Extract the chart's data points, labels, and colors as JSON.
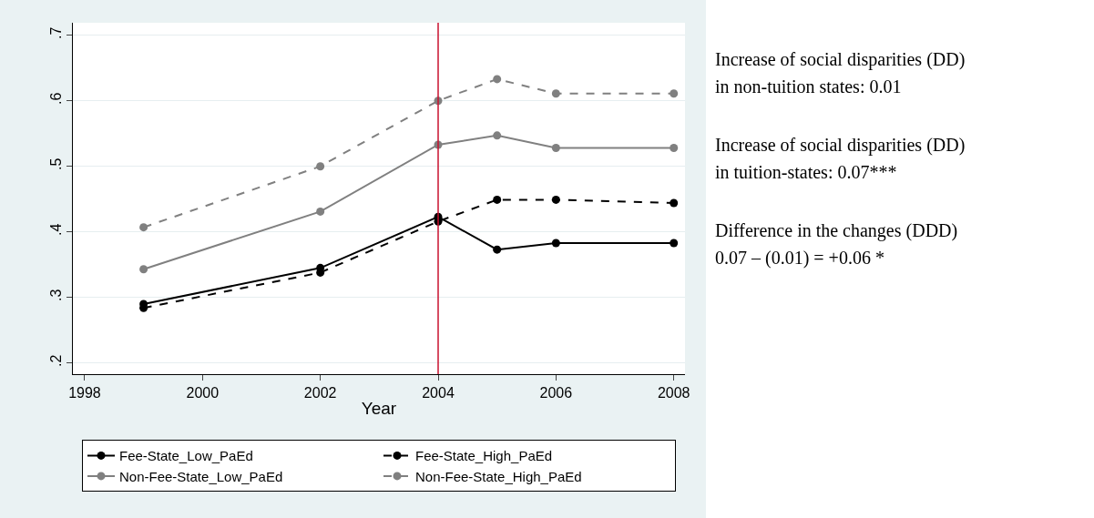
{
  "chart_data": {
    "type": "line",
    "xlabel": "Year",
    "x": [
      1999,
      2002,
      2004,
      2005,
      2006,
      2008
    ],
    "series": [
      {
        "name": "Fee-State_Low_PaEd",
        "color": "#000000",
        "line_style": "solid",
        "values": [
          0.29,
          0.345,
          0.423,
          0.373,
          0.383,
          0.383
        ]
      },
      {
        "name": "Fee-State_High_PaEd",
        "color": "#000000",
        "line_style": "dashed",
        "values": [
          0.284,
          0.338,
          0.416,
          0.449,
          0.449,
          0.444
        ]
      },
      {
        "name": "Non-Fee-State_Low_PaEd",
        "color": "#808080",
        "line_style": "solid",
        "values": [
          0.343,
          0.431,
          0.533,
          0.547,
          0.528,
          0.528
        ]
      },
      {
        "name": "Non-Fee-State_High_PaEd",
        "color": "#808080",
        "line_style": "dashed",
        "values": [
          0.407,
          0.5,
          0.6,
          0.633,
          0.611,
          0.611
        ]
      }
    ],
    "marker": "circle",
    "xlim": [
      1997.8,
      2008.19
    ],
    "xticks": [
      1998,
      2000,
      2002,
      2004,
      2006,
      2008
    ],
    "ylim": [
      0.183,
      0.719
    ],
    "yticks": [
      {
        "value": 0.2,
        "label": ".2"
      },
      {
        "value": 0.3,
        "label": ".3"
      },
      {
        "value": 0.4,
        "label": ".4"
      },
      {
        "value": 0.5,
        "label": ".5"
      },
      {
        "value": 0.6,
        "label": ".6"
      },
      {
        "value": 0.7,
        "label": ".7"
      }
    ],
    "grid": "y",
    "legend": "bottom",
    "ref_lines": [
      {
        "axis": "x",
        "value": 2004,
        "color": "#c8102e"
      }
    ],
    "annotations": [
      "Increase of social disparities (DD)\nin non-tuition states: 0.01",
      "Increase of social disparities (DD)\nin tuition-states: 0.07***",
      "Difference in the changes (DDD)\n0.07 – (0.01) = +0.06 *"
    ]
  }
}
